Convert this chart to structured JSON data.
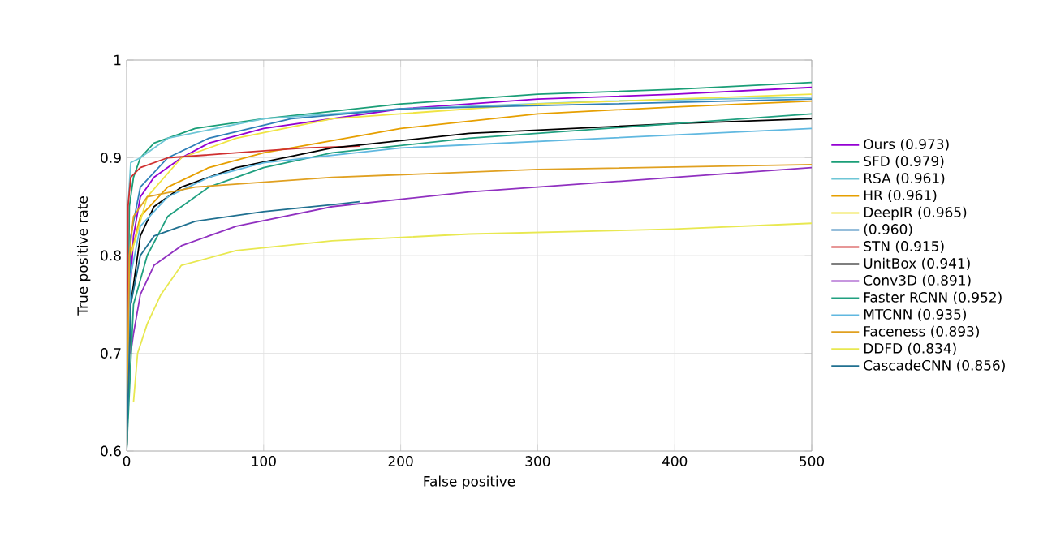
{
  "chart_data": {
    "type": "line",
    "xlabel": "False positive",
    "ylabel": "True positive rate",
    "xlim": [
      0,
      500
    ],
    "ylim": [
      0.6,
      1
    ],
    "xticks": [
      0,
      100,
      200,
      300,
      400,
      500
    ],
    "yticks": [
      0.6,
      0.7,
      0.8,
      0.9,
      1
    ],
    "grid": true,
    "legend": "right",
    "line_style": "solid",
    "marker": "none",
    "series": [
      {
        "name": "Ours (0.973)",
        "color": "#9400d3",
        "x": [
          0,
          2,
          5,
          10,
          20,
          40,
          60,
          100,
          200,
          300,
          400,
          500
        ],
        "values": [
          0.6,
          0.75,
          0.82,
          0.86,
          0.88,
          0.9,
          0.915,
          0.93,
          0.95,
          0.96,
          0.965,
          0.972
        ]
      },
      {
        "name": "SFD (0.979)",
        "color": "#1a9e77",
        "x": [
          0,
          2,
          5,
          10,
          20,
          50,
          100,
          200,
          300,
          400,
          500
        ],
        "values": [
          0.6,
          0.85,
          0.88,
          0.9,
          0.915,
          0.93,
          0.94,
          0.955,
          0.965,
          0.97,
          0.977
        ]
      },
      {
        "name": "RSA (0.961)",
        "color": "#6ec6d6",
        "x": [
          0,
          1,
          3,
          10,
          30,
          100,
          200,
          350,
          500
        ],
        "values": [
          0.6,
          0.85,
          0.895,
          0.9,
          0.92,
          0.94,
          0.95,
          0.958,
          0.962
        ]
      },
      {
        "name": "HR (0.961)",
        "color": "#e69f00",
        "x": [
          0,
          3,
          10,
          30,
          60,
          100,
          200,
          300,
          400,
          500
        ],
        "values": [
          0.6,
          0.8,
          0.84,
          0.87,
          0.89,
          0.905,
          0.93,
          0.945,
          0.952,
          0.958
        ]
      },
      {
        "name": "DeepIR (0.965)",
        "color": "#f0e442",
        "x": [
          0,
          3,
          15,
          40,
          80,
          150,
          300,
          500
        ],
        "values": [
          0.6,
          0.8,
          0.86,
          0.9,
          0.92,
          0.94,
          0.955,
          0.965
        ]
      },
      {
        "name": "(0.960)",
        "color": "#2f7fb8",
        "x": [
          0,
          3,
          10,
          30,
          60,
          120,
          200,
          350,
          500
        ],
        "values": [
          0.6,
          0.82,
          0.87,
          0.9,
          0.92,
          0.94,
          0.95,
          0.955,
          0.96
        ]
      },
      {
        "name": "STN (0.915)",
        "color": "#d03030",
        "x": [
          0,
          1,
          3,
          10,
          30,
          80,
          130,
          170
        ],
        "values": [
          0.6,
          0.85,
          0.88,
          0.89,
          0.9,
          0.905,
          0.91,
          0.912
        ]
      },
      {
        "name": "UnitBox (0.941)",
        "color": "#000000",
        "x": [
          0,
          3,
          10,
          20,
          40,
          80,
          150,
          250,
          400,
          500
        ],
        "values": [
          0.6,
          0.75,
          0.82,
          0.85,
          0.87,
          0.89,
          0.91,
          0.925,
          0.935,
          0.94
        ]
      },
      {
        "name": "Conv3D (0.891)",
        "color": "#9030c0",
        "x": [
          3,
          5,
          10,
          20,
          40,
          80,
          150,
          250,
          400,
          500
        ],
        "values": [
          0.7,
          0.72,
          0.76,
          0.79,
          0.81,
          0.83,
          0.85,
          0.865,
          0.88,
          0.89
        ]
      },
      {
        "name": "Faster RCNN (0.952)",
        "color": "#20a080",
        "x": [
          0,
          5,
          15,
          30,
          60,
          100,
          150,
          250,
          400,
          500
        ],
        "values": [
          0.6,
          0.75,
          0.8,
          0.84,
          0.87,
          0.89,
          0.905,
          0.92,
          0.935,
          0.945
        ]
      },
      {
        "name": "MTCNN (0.935)",
        "color": "#60b8e0",
        "x": [
          0,
          3,
          10,
          30,
          60,
          100,
          200,
          350,
          500
        ],
        "values": [
          0.6,
          0.78,
          0.83,
          0.86,
          0.88,
          0.895,
          0.91,
          0.92,
          0.93
        ]
      },
      {
        "name": "Faceness (0.893)",
        "color": "#e0a020",
        "x": [
          0,
          2,
          5,
          15,
          50,
          150,
          300,
          500
        ],
        "values": [
          0.6,
          0.8,
          0.84,
          0.86,
          0.87,
          0.88,
          0.888,
          0.893
        ]
      },
      {
        "name": "DDFD (0.834)",
        "color": "#e8e850",
        "x": [
          5,
          8,
          15,
          25,
          40,
          80,
          150,
          250,
          400,
          500
        ],
        "values": [
          0.65,
          0.7,
          0.73,
          0.76,
          0.79,
          0.805,
          0.815,
          0.822,
          0.827,
          0.833
        ]
      },
      {
        "name": "CascadeCNN (0.856)",
        "color": "#207090",
        "x": [
          0,
          3,
          10,
          20,
          50,
          100,
          150,
          170
        ],
        "values": [
          0.6,
          0.75,
          0.8,
          0.82,
          0.835,
          0.845,
          0.852,
          0.855
        ]
      }
    ]
  }
}
